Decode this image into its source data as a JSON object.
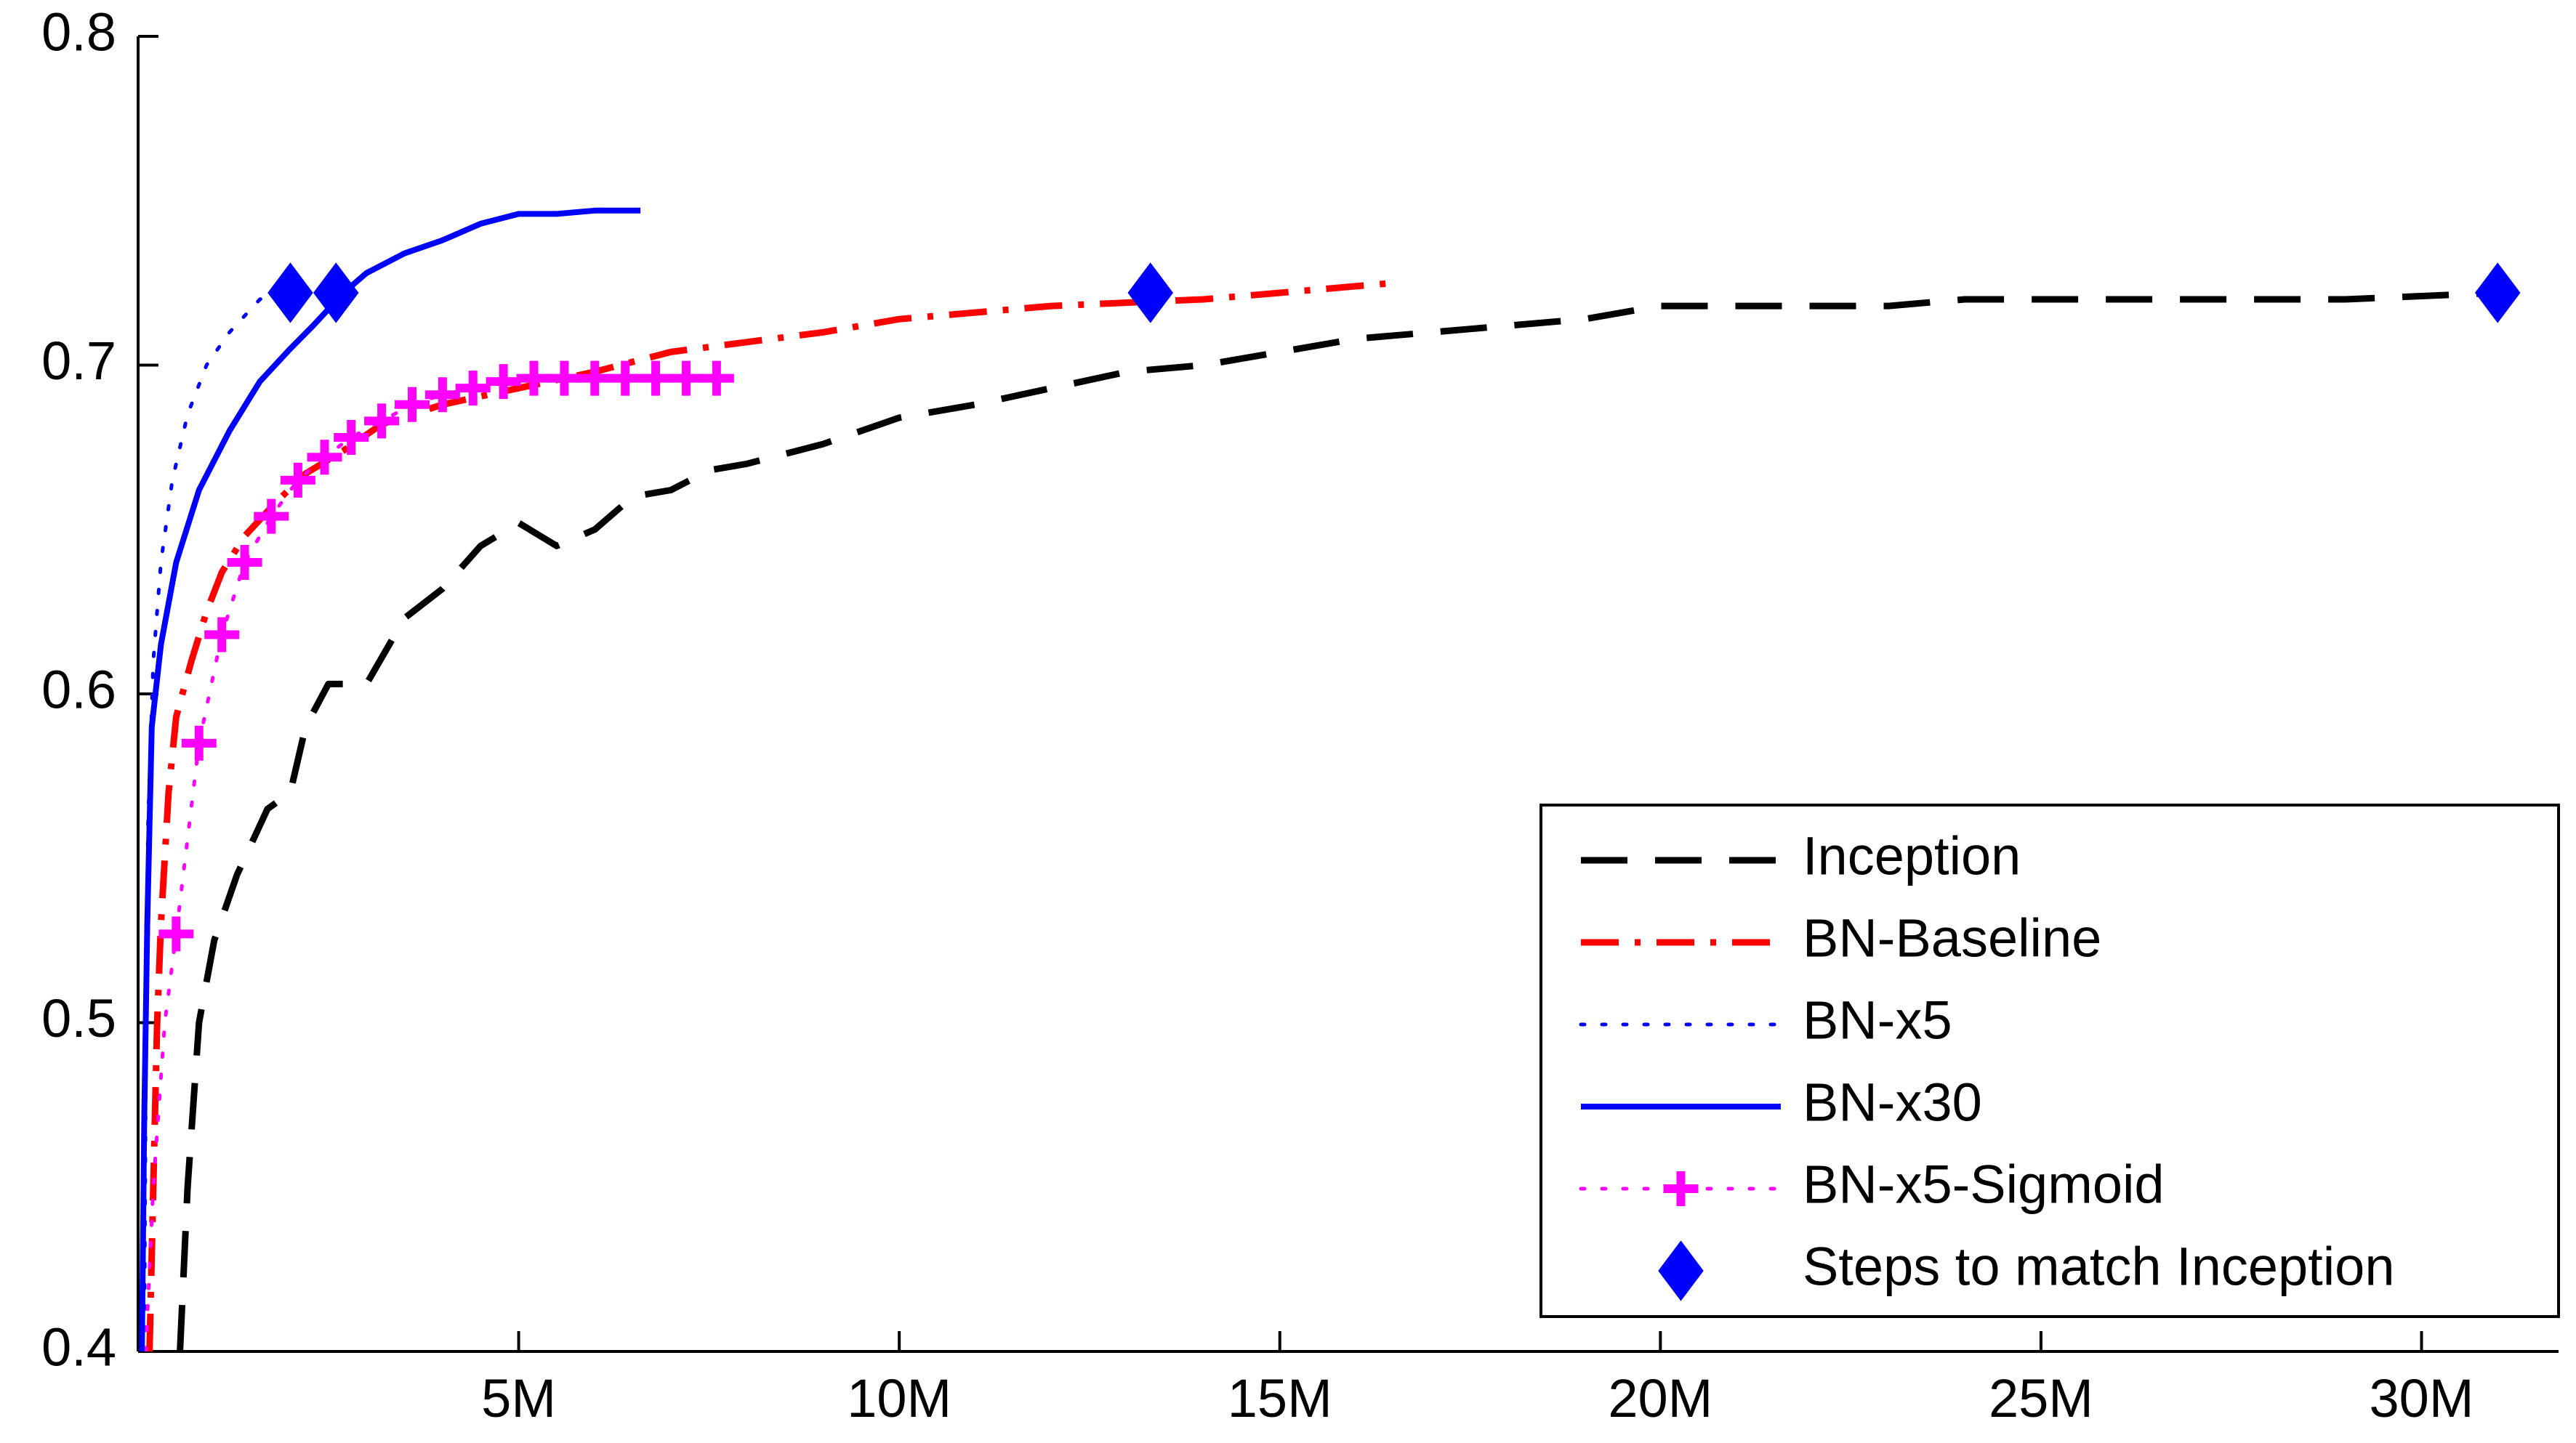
{
  "chart_data": {
    "type": "line",
    "title": "",
    "xlabel": "",
    "ylabel": "",
    "xlim": [
      0,
      31800000
    ],
    "ylim": [
      0.4,
      0.8
    ],
    "grid": false,
    "legend_position": "bottom-right",
    "x_ticks": [
      {
        "value": 5000000,
        "label": "5M"
      },
      {
        "value": 10000000,
        "label": "10M"
      },
      {
        "value": 15000000,
        "label": "15M"
      },
      {
        "value": 20000000,
        "label": "20M"
      },
      {
        "value": 25000000,
        "label": "25M"
      },
      {
        "value": 30000000,
        "label": "30M"
      }
    ],
    "y_ticks": [
      {
        "value": 0.4,
        "label": "0.4"
      },
      {
        "value": 0.5,
        "label": "0.5"
      },
      {
        "value": 0.6,
        "label": "0.6"
      },
      {
        "value": 0.7,
        "label": "0.7"
      },
      {
        "value": 0.8,
        "label": "0.8"
      }
    ],
    "series": [
      {
        "name": "Inception",
        "color": "#000000",
        "style": "dashed",
        "marker": "none",
        "points": [
          [
            550000,
            0.4
          ],
          [
            650000,
            0.45
          ],
          [
            800000,
            0.5
          ],
          [
            1000000,
            0.525
          ],
          [
            1300000,
            0.545
          ],
          [
            1700000,
            0.565
          ],
          [
            2000000,
            0.57
          ],
          [
            2200000,
            0.59
          ],
          [
            2500000,
            0.603
          ],
          [
            3000000,
            0.603
          ],
          [
            3500000,
            0.623
          ],
          [
            4000000,
            0.632
          ],
          [
            4500000,
            0.645
          ],
          [
            5000000,
            0.652
          ],
          [
            5500000,
            0.645
          ],
          [
            6000000,
            0.65
          ],
          [
            6500000,
            0.66
          ],
          [
            7000000,
            0.662
          ],
          [
            7500000,
            0.668
          ],
          [
            8000000,
            0.67
          ],
          [
            9000000,
            0.676
          ],
          [
            10000000,
            0.684
          ],
          [
            11000000,
            0.688
          ],
          [
            12000000,
            0.693
          ],
          [
            13000000,
            0.698
          ],
          [
            14000000,
            0.7
          ],
          [
            15000000,
            0.704
          ],
          [
            16000000,
            0.708
          ],
          [
            17000000,
            0.71
          ],
          [
            18000000,
            0.712
          ],
          [
            19000000,
            0.714
          ],
          [
            20000000,
            0.718
          ],
          [
            21000000,
            0.718
          ],
          [
            22000000,
            0.718
          ],
          [
            23000000,
            0.718
          ],
          [
            24000000,
            0.72
          ],
          [
            25000000,
            0.72
          ],
          [
            26000000,
            0.72
          ],
          [
            27000000,
            0.72
          ],
          [
            28000000,
            0.72
          ],
          [
            29000000,
            0.72
          ],
          [
            30000000,
            0.721
          ],
          [
            31000000,
            0.722
          ]
        ]
      },
      {
        "name": "BN-Baseline",
        "color": "#ff0000",
        "style": "dashdot",
        "marker": "none",
        "points": [
          [
            150000,
            0.4
          ],
          [
            200000,
            0.45
          ],
          [
            250000,
            0.5
          ],
          [
            300000,
            0.53
          ],
          [
            400000,
            0.57
          ],
          [
            500000,
            0.593
          ],
          [
            700000,
            0.61
          ],
          [
            900000,
            0.625
          ],
          [
            1100000,
            0.637
          ],
          [
            1400000,
            0.648
          ],
          [
            1800000,
            0.658
          ],
          [
            2200000,
            0.667
          ],
          [
            2700000,
            0.674
          ],
          [
            3200000,
            0.682
          ],
          [
            4000000,
            0.688
          ],
          [
            5000000,
            0.693
          ],
          [
            6000000,
            0.698
          ],
          [
            7000000,
            0.704
          ],
          [
            8000000,
            0.707
          ],
          [
            9000000,
            0.71
          ],
          [
            10000000,
            0.714
          ],
          [
            11000000,
            0.716
          ],
          [
            12000000,
            0.718
          ],
          [
            13000000,
            0.719
          ],
          [
            14000000,
            0.72
          ],
          [
            15000000,
            0.722
          ],
          [
            16000000,
            0.724
          ],
          [
            16500000,
            0.725
          ]
        ]
      },
      {
        "name": "BN-x5",
        "color": "#0000ff",
        "style": "dotted",
        "marker": "none",
        "points": [
          [
            80000,
            0.4
          ],
          [
            100000,
            0.48
          ],
          [
            130000,
            0.56
          ],
          [
            200000,
            0.61
          ],
          [
            300000,
            0.64
          ],
          [
            450000,
            0.665
          ],
          [
            650000,
            0.685
          ],
          [
            900000,
            0.7
          ],
          [
            1200000,
            0.71
          ],
          [
            1600000,
            0.72
          ],
          [
            2000000,
            0.723
          ]
        ]
      },
      {
        "name": "BN-x30",
        "color": "#0000ff",
        "style": "solid",
        "marker": "none",
        "points": [
          [
            50000,
            0.4
          ],
          [
            80000,
            0.47
          ],
          [
            120000,
            0.53
          ],
          [
            180000,
            0.59
          ],
          [
            300000,
            0.615
          ],
          [
            500000,
            0.64
          ],
          [
            800000,
            0.662
          ],
          [
            1200000,
            0.68
          ],
          [
            1600000,
            0.695
          ],
          [
            2000000,
            0.705
          ],
          [
            2300000,
            0.712
          ],
          [
            2700000,
            0.722
          ],
          [
            3000000,
            0.728
          ],
          [
            3500000,
            0.734
          ],
          [
            4000000,
            0.738
          ],
          [
            4500000,
            0.743
          ],
          [
            5000000,
            0.746
          ],
          [
            5500000,
            0.746
          ],
          [
            6000000,
            0.747
          ],
          [
            6600000,
            0.747
          ]
        ]
      },
      {
        "name": "BN-x5-Sigmoid",
        "color": "#ff00ff",
        "style": "dotted",
        "marker": "plus",
        "points": [
          [
            100000,
            0.4
          ],
          [
            200000,
            0.45
          ],
          [
            350000,
            0.5
          ],
          [
            500000,
            0.527
          ],
          [
            800000,
            0.585
          ],
          [
            1100000,
            0.618
          ],
          [
            1400000,
            0.64
          ],
          [
            1750000,
            0.654
          ],
          [
            2100000,
            0.665
          ],
          [
            2450000,
            0.672
          ],
          [
            2800000,
            0.678
          ],
          [
            3200000,
            0.683
          ],
          [
            3600000,
            0.688
          ],
          [
            4000000,
            0.691
          ],
          [
            4400000,
            0.693
          ],
          [
            4800000,
            0.695
          ],
          [
            5200000,
            0.696
          ],
          [
            5600000,
            0.696
          ],
          [
            6000000,
            0.696
          ],
          [
            6400000,
            0.696
          ],
          [
            6800000,
            0.696
          ],
          [
            7200000,
            0.696
          ],
          [
            7600000,
            0.696
          ]
        ]
      },
      {
        "name": "Steps to match Inception",
        "color": "#0000ff",
        "style": "none",
        "marker": "diamond",
        "points": [
          [
            2000000,
            0.722
          ],
          [
            2600000,
            0.722
          ],
          [
            13300000,
            0.722
          ],
          [
            31000000,
            0.722
          ]
        ]
      }
    ]
  }
}
